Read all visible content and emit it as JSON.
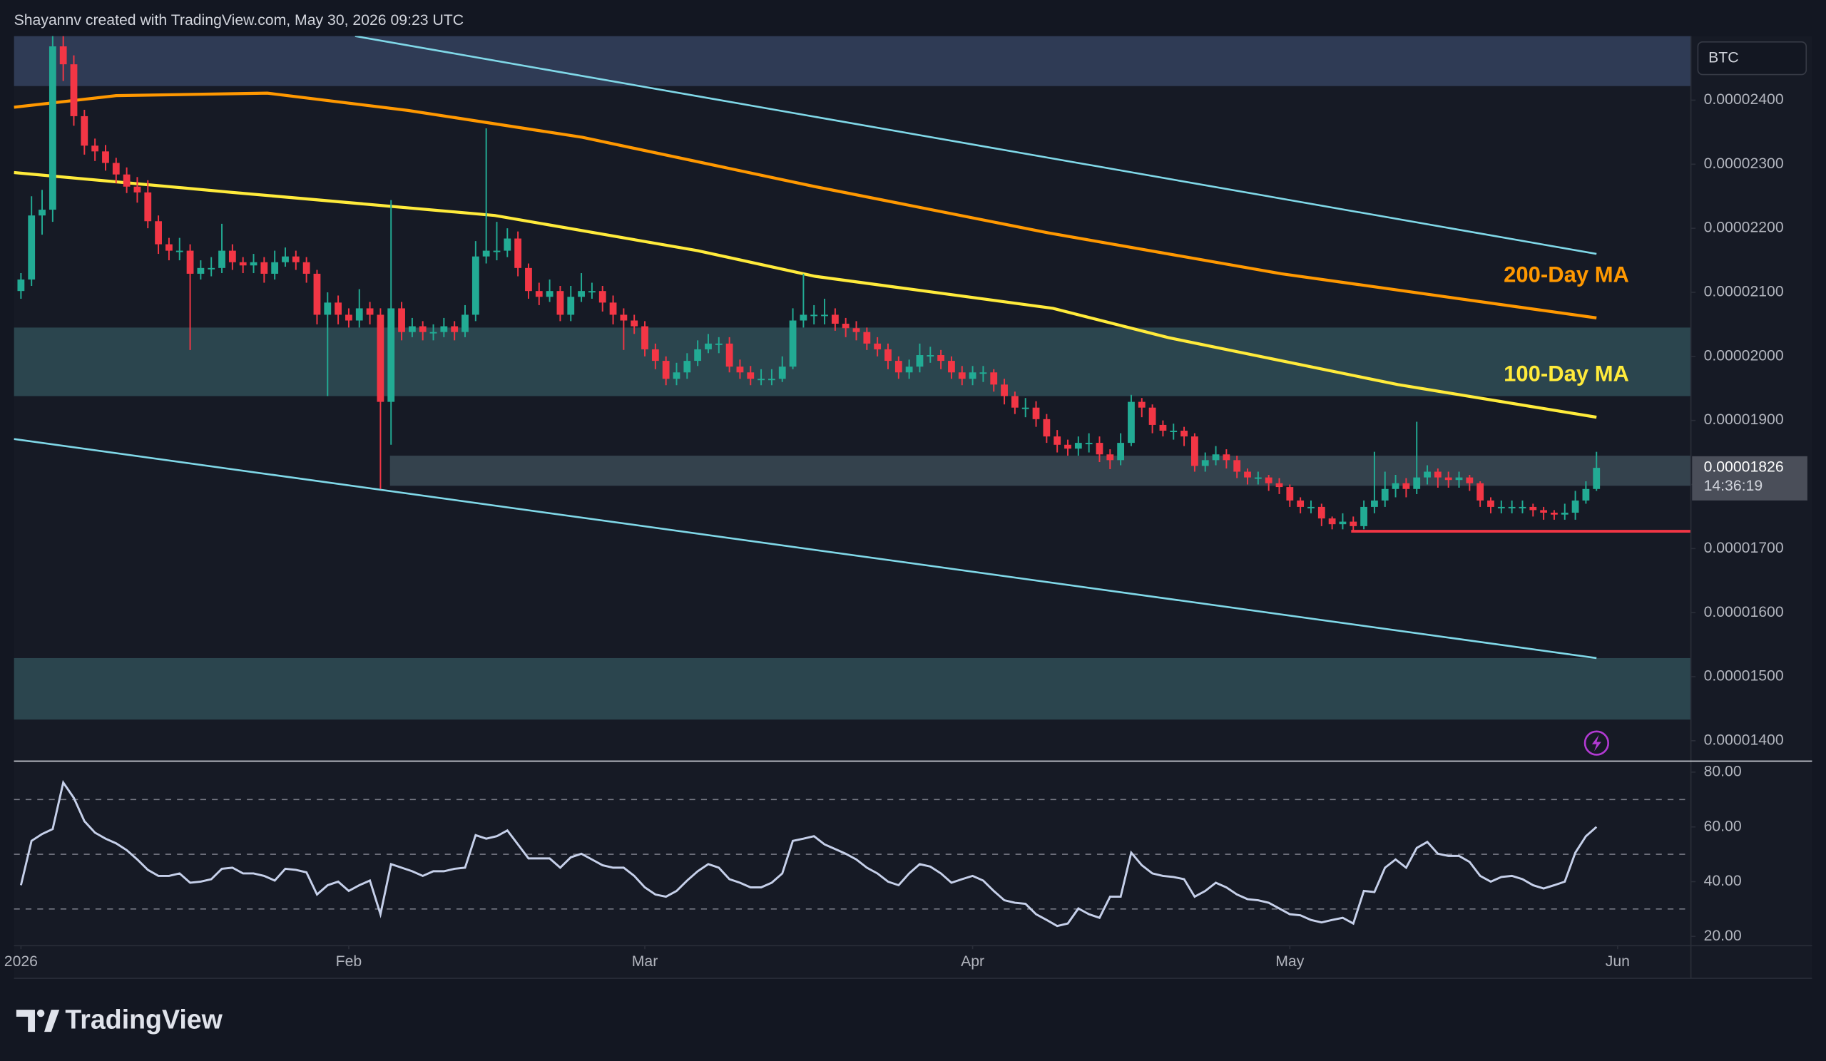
{
  "header": "Shayannv created with TradingView.com, May 30, 2026 09:23 UTC",
  "brand": "TradingView",
  "chart_data": {
    "type": "candlestick",
    "symbol": "BTC",
    "x": [
      0,
      1,
      2,
      3,
      4,
      5,
      6,
      7,
      8,
      9,
      10,
      11,
      12,
      13,
      14,
      15,
      16,
      17,
      18,
      19,
      20,
      21,
      22,
      23,
      24,
      25,
      26,
      27,
      28,
      29,
      30,
      31,
      32,
      33,
      34,
      35,
      36,
      37,
      38,
      39,
      40,
      41,
      42,
      43,
      44,
      45,
      46,
      47,
      48,
      49,
      50,
      51,
      52,
      53,
      54,
      55,
      56,
      57,
      58,
      59,
      60,
      61,
      62,
      63,
      64,
      65,
      66,
      67,
      68,
      69,
      70,
      71,
      72,
      73,
      74,
      75,
      76,
      77,
      78,
      79,
      80,
      81,
      82,
      83,
      84,
      85,
      86,
      87,
      88,
      89,
      90,
      91,
      92,
      93,
      94,
      95,
      96,
      97,
      98,
      99,
      100,
      101,
      102,
      103,
      104,
      105,
      106,
      107,
      108,
      109,
      110,
      111,
      112,
      113,
      114,
      115,
      116,
      117,
      118,
      119,
      120,
      121,
      122,
      123,
      124,
      125,
      126,
      127,
      128,
      129,
      130,
      131,
      132,
      133,
      134,
      135,
      136,
      137,
      138,
      139,
      140,
      141,
      142,
      143,
      144,
      145,
      146,
      147,
      148,
      149
    ],
    "open": [
      2.102e-05,
      2.12e-05,
      2.22e-05,
      2.229e-05,
      2.484e-05,
      2.456e-05,
      2.375e-05,
      2.329e-05,
      2.32e-05,
      2.302e-05,
      2.284e-05,
      2.265e-05,
      2.256e-05,
      2.211e-05,
      2.175e-05,
      2.165e-05,
      2.165e-05,
      2.129e-05,
      2.138e-05,
      2.138e-05,
      2.165e-05,
      2.147e-05,
      2.142e-05,
      2.147e-05,
      2.129e-05,
      2.147e-05,
      2.156e-05,
      2.147e-05,
      2.129e-05,
      2.065e-05,
      2.084e-05,
      2.065e-05,
      2.056e-05,
      2.075e-05,
      2.065e-05,
      1.929e-05,
      2.075e-05,
      2.038e-05,
      2.047e-05,
      2.038e-05,
      2.038e-05,
      2.047e-05,
      2.038e-05,
      2.065e-05,
      2.156e-05,
      2.165e-05,
      2.165e-05,
      2.184e-05,
      2.138e-05,
      2.102e-05,
      2.093e-05,
      2.102e-05,
      2.065e-05,
      2.093e-05,
      2.102e-05,
      2.102e-05,
      2.084e-05,
      2.065e-05,
      2.056e-05,
      2.047e-05,
      2.011e-05,
      1.993e-05,
      1.965e-05,
      1.975e-05,
      1.993e-05,
      2.011e-05,
      2.02e-05,
      2.02e-05,
      1.984e-05,
      1.975e-05,
      1.965e-05,
      1.965e-05,
      1.965e-05,
      1.984e-05,
      2.056e-05,
      2.065e-05,
      2.065e-05,
      2.065e-05,
      2.051e-05,
      2.044e-05,
      2.038e-05,
      2.02e-05,
      2.011e-05,
      1.993e-05,
      1.975e-05,
      1.984e-05,
      2.002e-05,
      2.002e-05,
      1.993e-05,
      1.975e-05,
      1.965e-05,
      1.975e-05,
      1.975e-05,
      1.956e-05,
      1.938e-05,
      1.92e-05,
      1.92e-05,
      1.902e-05,
      1.875e-05,
      1.862e-05,
      1.856e-05,
      1.865e-05,
      1.865e-05,
      1.847e-05,
      1.838e-05,
      1.865e-05,
      1.929e-05,
      1.92e-05,
      1.893e-05,
      1.884e-05,
      1.884e-05,
      1.875e-05,
      1.829e-05,
      1.838e-05,
      1.847e-05,
      1.838e-05,
      1.82e-05,
      1.811e-05,
      1.811e-05,
      1.802e-05,
      1.796e-05,
      1.775e-05,
      1.765e-05,
      1.765e-05,
      1.747e-05,
      1.738e-05,
      1.742e-05,
      1.735e-05,
      1.765e-05,
      1.775e-05,
      1.793e-05,
      1.802e-05,
      1.793e-05,
      1.811e-05,
      1.82e-05,
      1.811e-05,
      1.807e-05,
      1.811e-05,
      1.802e-05,
      1.775e-05,
      1.765e-05,
      1.765e-05,
      1.765e-05,
      1.765e-05,
      1.76e-05,
      1.756e-05,
      1.753e-05,
      1.756e-05,
      1.775e-05,
      1.793e-05
    ],
    "high": [
      2.13e-05,
      2.25e-05,
      2.26e-05,
      2.52e-05,
      2.5e-05,
      2.47e-05,
      2.385e-05,
      2.34e-05,
      2.33e-05,
      2.31e-05,
      2.295e-05,
      2.28e-05,
      2.275e-05,
      2.22e-05,
      2.185e-05,
      2.185e-05,
      2.175e-05,
      2.15e-05,
      2.155e-05,
      2.207e-05,
      2.175e-05,
      2.155e-05,
      2.16e-05,
      2.155e-05,
      2.165e-05,
      2.17e-05,
      2.165e-05,
      2.155e-05,
      2.135e-05,
      2.1e-05,
      2.095e-05,
      2.075e-05,
      2.105e-05,
      2.085e-05,
      2.075e-05,
      2.244e-05,
      2.085e-05,
      2.06e-05,
      2.055e-05,
      2.05e-05,
      2.06e-05,
      2.055e-05,
      2.08e-05,
      2.18e-05,
      2.356e-05,
      2.21e-05,
      2.2e-05,
      2.195e-05,
      2.145e-05,
      2.115e-05,
      2.12e-05,
      2.11e-05,
      2.11e-05,
      2.13e-05,
      2.115e-05,
      2.11e-05,
      2.095e-05,
      2.075e-05,
      2.065e-05,
      2.055e-05,
      2.02e-05,
      2e-05,
      1.99e-05,
      2.005e-05,
      2.025e-05,
      2.035e-05,
      2.03e-05,
      2.03e-05,
      1.995e-05,
      1.985e-05,
      1.98e-05,
      1.98e-05,
      2e-05,
      2.075e-05,
      2.129e-05,
      2.08e-05,
      2.09e-05,
      2.075e-05,
      2.06e-05,
      2.055e-05,
      2.045e-05,
      2.03e-05,
      2.02e-05,
      2e-05,
      1.995e-05,
      2.02e-05,
      2.015e-05,
      2.01e-05,
      2e-05,
      1.985e-05,
      1.985e-05,
      1.985e-05,
      1.98e-05,
      1.965e-05,
      1.945e-05,
      1.935e-05,
      1.93e-05,
      1.91e-05,
      1.885e-05,
      1.87e-05,
      1.875e-05,
      1.88e-05,
      1.875e-05,
      1.855e-05,
      1.88e-05,
      1.94e-05,
      1.935e-05,
      1.925e-05,
      1.9e-05,
      1.895e-05,
      1.89e-05,
      1.88e-05,
      1.85e-05,
      1.86e-05,
      1.855e-05,
      1.845e-05,
      1.825e-05,
      1.82e-05,
      1.815e-05,
      1.81e-05,
      1.8e-05,
      1.78e-05,
      1.775e-05,
      1.77e-05,
      1.75e-05,
      1.755e-05,
      1.75e-05,
      1.775e-05,
      1.851e-05,
      1.82e-05,
      1.815e-05,
      1.81e-05,
      1.898e-05,
      1.83e-05,
      1.825e-05,
      1.82e-05,
      1.82e-05,
      1.815e-05,
      1.805e-05,
      1.78e-05,
      1.775e-05,
      1.775e-05,
      1.775e-05,
      1.77e-05,
      1.765e-05,
      1.76e-05,
      1.77e-05,
      1.79e-05,
      1.805e-05,
      1.851e-05
    ],
    "low": [
      2.09e-05,
      2.11e-05,
      2.19e-05,
      2.21e-05,
      2.43e-05,
      2.36e-05,
      2.315e-05,
      2.305e-05,
      2.29e-05,
      2.27e-05,
      2.255e-05,
      2.24e-05,
      2.2e-05,
      2.16e-05,
      2.15e-05,
      2.15e-05,
      2.01e-05,
      2.12e-05,
      2.125e-05,
      2.13e-05,
      2.135e-05,
      2.13e-05,
      2.13e-05,
      2.115e-05,
      2.12e-05,
      2.14e-05,
      2.135e-05,
      2.115e-05,
      2.05e-05,
      1.938e-05,
      2.05e-05,
      2.045e-05,
      2.045e-05,
      2.05e-05,
      1.793e-05,
      1.862e-05,
      2.025e-05,
      2.03e-05,
      2.025e-05,
      2.025e-05,
      2.03e-05,
      2.025e-05,
      2.03e-05,
      2.055e-05,
      2.145e-05,
      2.15e-05,
      2.155e-05,
      2.125e-05,
      2.09e-05,
      2.08e-05,
      2.085e-05,
      2.055e-05,
      2.055e-05,
      2.085e-05,
      2.09e-05,
      2.07e-05,
      2.05e-05,
      2.01e-05,
      2.035e-05,
      2e-05,
      1.98e-05,
      1.955e-05,
      1.955e-05,
      1.965e-05,
      1.985e-05,
      2.005e-05,
      2.005e-05,
      1.975e-05,
      1.965e-05,
      1.955e-05,
      1.955e-05,
      1.955e-05,
      1.96e-05,
      1.98e-05,
      2.045e-05,
      2.05e-05,
      2.05e-05,
      2.04e-05,
      2.03e-05,
      2.025e-05,
      2.01e-05,
      2e-05,
      1.98e-05,
      1.965e-05,
      1.965e-05,
      1.975e-05,
      1.99e-05,
      1.98e-05,
      1.965e-05,
      1.955e-05,
      1.955e-05,
      1.96e-05,
      1.945e-05,
      1.925e-05,
      1.91e-05,
      1.905e-05,
      1.89e-05,
      1.865e-05,
      1.85e-05,
      1.845e-05,
      1.845e-05,
      1.85e-05,
      1.835e-05,
      1.824e-05,
      1.83e-05,
      1.86e-05,
      1.905e-05,
      1.88e-05,
      1.875e-05,
      1.87e-05,
      1.86e-05,
      1.82e-05,
      1.82e-05,
      1.83e-05,
      1.825e-05,
      1.81e-05,
      1.8e-05,
      1.8e-05,
      1.79e-05,
      1.785e-05,
      1.765e-05,
      1.755e-05,
      1.755e-05,
      1.735e-05,
      1.73e-05,
      1.73e-05,
      1.728e-05,
      1.73e-05,
      1.755e-05,
      1.765e-05,
      1.78e-05,
      1.78e-05,
      1.785e-05,
      1.8e-05,
      1.795e-05,
      1.795e-05,
      1.795e-05,
      1.79e-05,
      1.765e-05,
      1.755e-05,
      1.755e-05,
      1.755e-05,
      1.755e-05,
      1.75e-05,
      1.745e-05,
      1.745e-05,
      1.745e-05,
      1.745e-05,
      1.77e-05,
      1.79e-05
    ],
    "close": [
      2.12e-05,
      2.22e-05,
      2.229e-05,
      2.484e-05,
      2.456e-05,
      2.375e-05,
      2.329e-05,
      2.32e-05,
      2.302e-05,
      2.284e-05,
      2.265e-05,
      2.256e-05,
      2.211e-05,
      2.175e-05,
      2.165e-05,
      2.165e-05,
      2.129e-05,
      2.138e-05,
      2.138e-05,
      2.165e-05,
      2.147e-05,
      2.142e-05,
      2.147e-05,
      2.129e-05,
      2.147e-05,
      2.156e-05,
      2.147e-05,
      2.129e-05,
      2.065e-05,
      2.084e-05,
      2.065e-05,
      2.056e-05,
      2.075e-05,
      2.065e-05,
      1.929e-05,
      2.075e-05,
      2.038e-05,
      2.047e-05,
      2.038e-05,
      2.038e-05,
      2.047e-05,
      2.038e-05,
      2.065e-05,
      2.156e-05,
      2.165e-05,
      2.165e-05,
      2.184e-05,
      2.138e-05,
      2.102e-05,
      2.093e-05,
      2.102e-05,
      2.065e-05,
      2.093e-05,
      2.102e-05,
      2.102e-05,
      2.084e-05,
      2.065e-05,
      2.056e-05,
      2.047e-05,
      2.011e-05,
      1.993e-05,
      1.965e-05,
      1.975e-05,
      1.993e-05,
      2.011e-05,
      2.02e-05,
      2.02e-05,
      1.984e-05,
      1.975e-05,
      1.965e-05,
      1.965e-05,
      1.965e-05,
      1.984e-05,
      2.056e-05,
      2.065e-05,
      2.065e-05,
      2.065e-05,
      2.051e-05,
      2.044e-05,
      2.038e-05,
      2.02e-05,
      2.011e-05,
      1.993e-05,
      1.975e-05,
      1.984e-05,
      2.002e-05,
      2.002e-05,
      1.993e-05,
      1.975e-05,
      1.965e-05,
      1.975e-05,
      1.975e-05,
      1.956e-05,
      1.938e-05,
      1.92e-05,
      1.92e-05,
      1.902e-05,
      1.875e-05,
      1.862e-05,
      1.856e-05,
      1.865e-05,
      1.865e-05,
      1.847e-05,
      1.838e-05,
      1.865e-05,
      1.929e-05,
      1.92e-05,
      1.893e-05,
      1.884e-05,
      1.884e-05,
      1.875e-05,
      1.829e-05,
      1.838e-05,
      1.847e-05,
      1.838e-05,
      1.82e-05,
      1.811e-05,
      1.811e-05,
      1.802e-05,
      1.796e-05,
      1.775e-05,
      1.765e-05,
      1.765e-05,
      1.747e-05,
      1.738e-05,
      1.742e-05,
      1.735e-05,
      1.765e-05,
      1.775e-05,
      1.793e-05,
      1.802e-05,
      1.793e-05,
      1.811e-05,
      1.82e-05,
      1.811e-05,
      1.807e-05,
      1.811e-05,
      1.802e-05,
      1.775e-05,
      1.765e-05,
      1.765e-05,
      1.765e-05,
      1.765e-05,
      1.76e-05,
      1.756e-05,
      1.753e-05,
      1.756e-05,
      1.775e-05,
      1.793e-05,
      1.826e-05
    ],
    "up_color": "#22ab94",
    "down_color": "#f23645",
    "xlim": [
      -0.66,
      157.93
    ],
    "xticks": [
      {
        "value": 0,
        "label": "2026"
      },
      {
        "value": 31,
        "label": "Feb"
      },
      {
        "value": 59,
        "label": "Mar"
      },
      {
        "value": 90,
        "label": "Apr"
      },
      {
        "value": 120,
        "label": "May"
      },
      {
        "value": 151,
        "label": "Jun"
      }
    ],
    "ylim": [
      1.3709e-05,
      2.5e-05
    ],
    "yticks": [
      {
        "value": 1.4e-05,
        "label": "0.00001400"
      },
      {
        "value": 1.5e-05,
        "label": "0.00001500"
      },
      {
        "value": 1.6e-05,
        "label": "0.00001600"
      },
      {
        "value": 1.7e-05,
        "label": "0.00001700"
      },
      {
        "value": 1.8e-05,
        "label": "0.00001800"
      },
      {
        "value": 1.9e-05,
        "label": "0.00001900"
      },
      {
        "value": 2e-05,
        "label": "0.00002000"
      },
      {
        "value": 2.1e-05,
        "label": "0.00002100"
      },
      {
        "value": 2.2e-05,
        "label": "0.00002200"
      },
      {
        "value": 2.3e-05,
        "label": "0.00002300"
      },
      {
        "value": 2.4e-05,
        "label": "0.00002400"
      }
    ],
    "price_tag": {
      "label": "0.00001826",
      "countdown": "14:36:19",
      "color": "#4a4e59"
    },
    "lines": [
      {
        "name": "100-Day MA",
        "color": "#ffeb3b",
        "x": [
          -0.66,
          20,
          44.8,
          64,
          75.1,
          97.6,
          108.6,
          130.2,
          149
        ],
        "values": [
          2.287e-05,
          2.256e-05,
          2.22e-05,
          2.165e-05,
          2.125e-05,
          2.075e-05,
          2.029e-05,
          1.956e-05,
          1.905e-05
        ]
      },
      {
        "name": "200-Day MA",
        "color": "#ff9800",
        "x": [
          -0.66,
          9,
          23.3,
          36.6,
          53.1,
          75.1,
          97.1,
          119.2,
          149
        ],
        "values": [
          2.389e-05,
          2.407e-05,
          2.411e-05,
          2.384e-05,
          2.342e-05,
          2.265e-05,
          2.193e-05,
          2.129e-05,
          2.06e-05
        ]
      },
      {
        "color": "#80d8e8",
        "x": [
          31.6,
          149
        ],
        "values": [
          2.5e-05,
          2.16e-05
        ]
      },
      {
        "color": "#80d8e8",
        "x": [
          -0.66,
          149
        ],
        "values": [
          1.871e-05,
          1.529e-05
        ]
      }
    ],
    "zones": [
      {
        "range": [
          2.422e-05,
          2.5e-05
        ],
        "color": "#34425e"
      },
      {
        "range": [
          1.938e-05,
          2.045e-05
        ],
        "color": "#2f4d56"
      },
      {
        "range": [
          1.798e-05,
          1.845e-05
        ],
        "x_from": 34.9,
        "color": "#3a4a55"
      },
      {
        "range": [
          1.433e-05,
          1.529e-05
        ],
        "color": "#2f4d56"
      }
    ],
    "level": {
      "value": 1.727e-05,
      "x_from": 125.8,
      "color": "#f23645"
    },
    "rsi": {
      "color": "#c6d0ea",
      "ylim": [
        16.6,
        83.4
      ],
      "levels": [
        30,
        50,
        70
      ],
      "yticks": [
        {
          "value": 20,
          "label": "20.00"
        },
        {
          "value": 40,
          "label": "40.00"
        },
        {
          "value": 60,
          "label": "60.00"
        },
        {
          "value": 80,
          "label": "80.00"
        }
      ],
      "values": [
        38.7,
        54.9,
        57.4,
        59.2,
        76.2,
        70.6,
        62.1,
        57.9,
        55.7,
        54.0,
        51.5,
        48.1,
        44.3,
        42.1,
        42.1,
        43.0,
        39.6,
        40.0,
        40.9,
        44.7,
        45.1,
        43.0,
        43.0,
        42.1,
        40.4,
        44.7,
        44.3,
        43.4,
        35.3,
        38.7,
        40.0,
        36.6,
        38.7,
        40.4,
        28.1,
        46.4,
        45.1,
        43.8,
        42.1,
        43.8,
        43.8,
        44.7,
        45.1,
        57.0,
        55.7,
        56.6,
        58.7,
        53.6,
        48.5,
        48.5,
        48.5,
        45.1,
        48.9,
        50.2,
        48.1,
        46.0,
        45.1,
        45.1,
        42.1,
        37.9,
        35.3,
        34.5,
        36.6,
        40.4,
        43.8,
        46.4,
        45.1,
        40.9,
        39.6,
        37.9,
        37.9,
        39.6,
        43.0,
        54.9,
        55.7,
        56.6,
        53.6,
        51.9,
        50.2,
        48.1,
        45.1,
        43.0,
        40.0,
        38.7,
        43.0,
        46.4,
        45.5,
        43.0,
        39.6,
        40.9,
        42.1,
        40.4,
        36.6,
        33.2,
        32.3,
        31.9,
        28.1,
        26.0,
        23.8,
        24.7,
        30.2,
        28.1,
        26.8,
        34.5,
        34.5,
        50.6,
        46.0,
        43.0,
        42.1,
        41.7,
        40.9,
        34.5,
        36.6,
        39.6,
        37.9,
        35.3,
        33.6,
        33.2,
        32.3,
        30.2,
        28.1,
        27.7,
        26.0,
        25.1,
        26.0,
        26.8,
        24.7,
        36.6,
        36.2,
        45.1,
        48.1,
        45.1,
        52.3,
        54.5,
        50.2,
        49.4,
        49.4,
        47.2,
        42.1,
        40.0,
        41.7,
        42.1,
        40.9,
        38.7,
        37.5,
        38.7,
        40.0,
        50.6,
        56.6,
        60.0
      ]
    }
  }
}
